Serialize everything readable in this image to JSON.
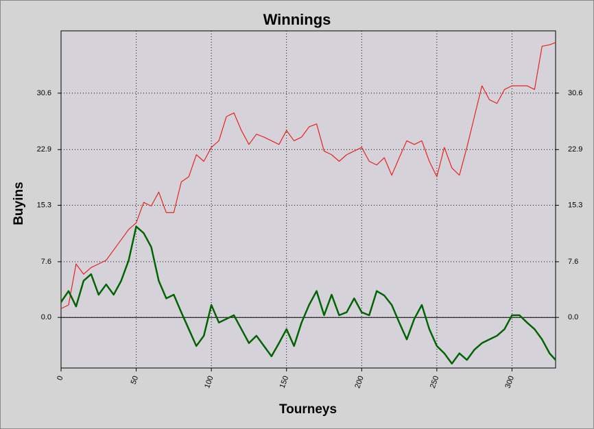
{
  "chart_data": {
    "type": "line",
    "title": "Winnings",
    "xlabel": "Tourneys",
    "ylabel": "Buyins",
    "x": [
      0,
      5,
      10,
      15,
      20,
      25,
      30,
      35,
      40,
      45,
      50,
      55,
      60,
      65,
      70,
      75,
      80,
      85,
      90,
      95,
      100,
      105,
      110,
      115,
      120,
      125,
      130,
      135,
      140,
      145,
      150,
      155,
      160,
      165,
      170,
      175,
      180,
      185,
      190,
      195,
      200,
      205,
      210,
      215,
      220,
      225,
      230,
      235,
      240,
      245,
      250,
      255,
      260,
      265,
      270,
      275,
      280,
      285,
      290,
      295,
      300,
      305,
      310,
      315,
      320,
      325,
      329
    ],
    "series": [
      {
        "color": "#e8231e",
        "values": [
          1.2,
          1.7,
          7.3,
          5.9,
          6.8,
          7.3,
          7.8,
          9.2,
          10.6,
          12.0,
          12.9,
          15.7,
          15.2,
          17.1,
          14.3,
          14.3,
          18.5,
          19.2,
          22.2,
          21.3,
          23.2,
          24.1,
          27.4,
          27.9,
          25.5,
          23.6,
          25.0,
          24.6,
          24.1,
          23.6,
          25.5,
          24.1,
          24.6,
          26.0,
          26.4,
          22.7,
          22.2,
          21.3,
          22.2,
          22.7,
          23.2,
          21.3,
          20.8,
          21.8,
          19.4,
          21.8,
          24.1,
          23.6,
          24.1,
          21.3,
          19.2,
          23.2,
          20.4,
          19.4,
          23.2,
          27.4,
          31.6,
          29.7,
          29.2,
          31.1,
          31.6,
          31.6,
          31.6,
          31.1,
          37.0,
          37.2,
          37.5
        ]
      },
      {
        "color": "#006400",
        "values": [
          2.1,
          3.6,
          1.5,
          5.0,
          5.9,
          3.1,
          4.5,
          3.1,
          5.0,
          7.8,
          12.4,
          11.5,
          9.6,
          5.0,
          2.6,
          3.1,
          0.7,
          -1.6,
          -3.9,
          -2.5,
          1.7,
          -0.7,
          -0.2,
          0.3,
          -1.6,
          -3.5,
          -2.5,
          -3.9,
          -5.3,
          -3.5,
          -1.6,
          -3.9,
          -0.7,
          1.7,
          3.6,
          0.3,
          3.1,
          0.3,
          0.7,
          2.6,
          0.7,
          0.3,
          3.6,
          3.0,
          1.7,
          -0.7,
          -3.0,
          -0.2,
          1.7,
          -1.6,
          -3.9,
          -4.9,
          -6.3,
          -4.9,
          -5.8,
          -4.4,
          -3.5,
          -3.0,
          -2.5,
          -1.6,
          0.3,
          0.3,
          -0.7,
          -1.6,
          -3.0,
          -4.9,
          -5.8
        ]
      }
    ],
    "xlim": [
      0,
      329
    ],
    "xticks": [
      0,
      50,
      100,
      150,
      200,
      250,
      300
    ],
    "ylim": [
      -6.9,
      39.1
    ],
    "yticks": [
      {
        "value": 0,
        "label": "0.0"
      },
      7.6,
      15.3,
      22.9,
      30.6
    ],
    "grid": true
  }
}
